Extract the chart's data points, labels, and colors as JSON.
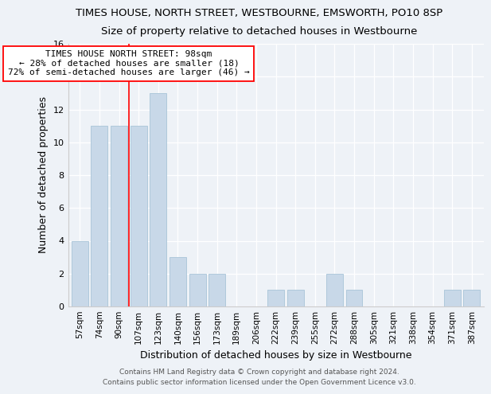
{
  "title": "TIMES HOUSE, NORTH STREET, WESTBOURNE, EMSWORTH, PO10 8SP",
  "subtitle": "Size of property relative to detached houses in Westbourne",
  "xlabel": "Distribution of detached houses by size in Westbourne",
  "ylabel": "Number of detached properties",
  "categories": [
    "57sqm",
    "74sqm",
    "90sqm",
    "107sqm",
    "123sqm",
    "140sqm",
    "156sqm",
    "173sqm",
    "189sqm",
    "206sqm",
    "222sqm",
    "239sqm",
    "255sqm",
    "272sqm",
    "288sqm",
    "305sqm",
    "321sqm",
    "338sqm",
    "354sqm",
    "371sqm",
    "387sqm"
  ],
  "values": [
    4,
    11,
    11,
    11,
    13,
    3,
    2,
    2,
    0,
    0,
    1,
    1,
    0,
    2,
    1,
    0,
    0,
    0,
    0,
    1,
    1
  ],
  "bar_color": "#c8d8e8",
  "bar_edge_color": "#a8c4d8",
  "red_line_x": 2.5,
  "annotation_text": "TIMES HOUSE NORTH STREET: 98sqm\n← 28% of detached houses are smaller (18)\n72% of semi-detached houses are larger (46) →",
  "ylim": [
    0,
    16
  ],
  "yticks": [
    0,
    2,
    4,
    6,
    8,
    10,
    12,
    14,
    16
  ],
  "background_color": "#eef2f7",
  "grid_color": "#ffffff",
  "footer": "Contains HM Land Registry data © Crown copyright and database right 2024.\nContains public sector information licensed under the Open Government Licence v3.0.",
  "title_fontsize": 9.5,
  "subtitle_fontsize": 9.5,
  "annotation_fontsize": 8.0
}
